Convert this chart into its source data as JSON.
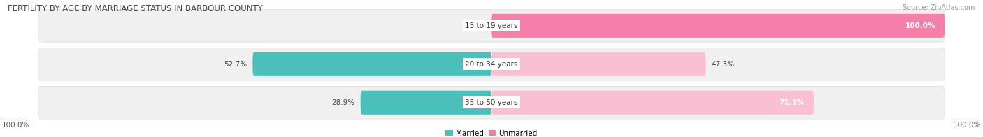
{
  "title": "FERTILITY BY AGE BY MARRIAGE STATUS IN BARBOUR COUNTY",
  "source": "Source: ZipAtlas.com",
  "categories": [
    "15 to 19 years",
    "20 to 34 years",
    "35 to 50 years"
  ],
  "married_values": [
    0.0,
    52.7,
    28.9
  ],
  "unmarried_values": [
    100.0,
    47.3,
    71.1
  ],
  "married_color": "#4bbfba",
  "unmarried_color": "#f47faa",
  "unmarried_light_color": "#f9c0d4",
  "row_bg_color": "#f0f0f0",
  "row_border_color": "#e0e0e0",
  "title_fontsize": 8.5,
  "source_fontsize": 7,
  "label_fontsize": 7.5,
  "category_fontsize": 7.5,
  "legend_fontsize": 7.5,
  "axis_label_left": "100.0%",
  "axis_label_right": "100.0%",
  "figsize": [
    14.06,
    1.96
  ],
  "dpi": 100
}
